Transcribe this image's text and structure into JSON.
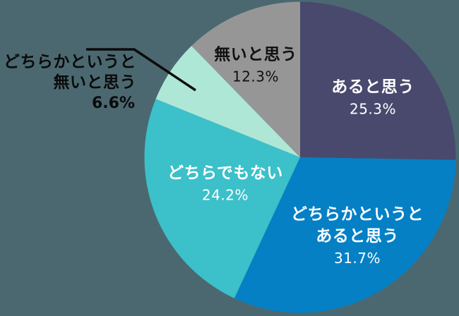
{
  "background_color": "#4B6870",
  "chart_data": {
    "type": "pie",
    "title": "",
    "legend": "none",
    "labels_on_slices": true,
    "start_angle_deg": 0,
    "direction": "clockwise",
    "slices": [
      {
        "label": "あると思う",
        "label_lines": [
          "あると思う"
        ],
        "value": 25.3,
        "pct_label": "25.3%",
        "color": "#49496E",
        "label_color": "#ffffff"
      },
      {
        "label": "どちらかというとあると思う",
        "label_lines": [
          "どちらかというと",
          "あると思う"
        ],
        "value": 31.7,
        "pct_label": "31.7%",
        "color": "#0580C5",
        "label_color": "#ffffff"
      },
      {
        "label": "どちらでもない",
        "label_lines": [
          "どちらでもない"
        ],
        "value": 24.2,
        "pct_label": "24.2%",
        "color": "#3CC0C9",
        "label_color": "#ffffff"
      },
      {
        "label": "どちらかというと無いと思う",
        "label_lines": [
          "どちらかというと",
          "無いと思う"
        ],
        "value": 6.6,
        "pct_label": "6.6%",
        "color": "#AFE7D7",
        "label_color": "#0b0b0b",
        "callout": true
      },
      {
        "label": "無いと思う",
        "label_lines": [
          "無いと思う"
        ],
        "value": 12.3,
        "pct_label": "12.3%",
        "color": "#969696",
        "label_color": "#111111"
      }
    ],
    "callout_line": {
      "color": "#0b0b0b",
      "width": 3.5,
      "points": [
        [
          122,
          70
        ],
        [
          190,
          70
        ],
        [
          277,
          128
        ]
      ]
    }
  }
}
